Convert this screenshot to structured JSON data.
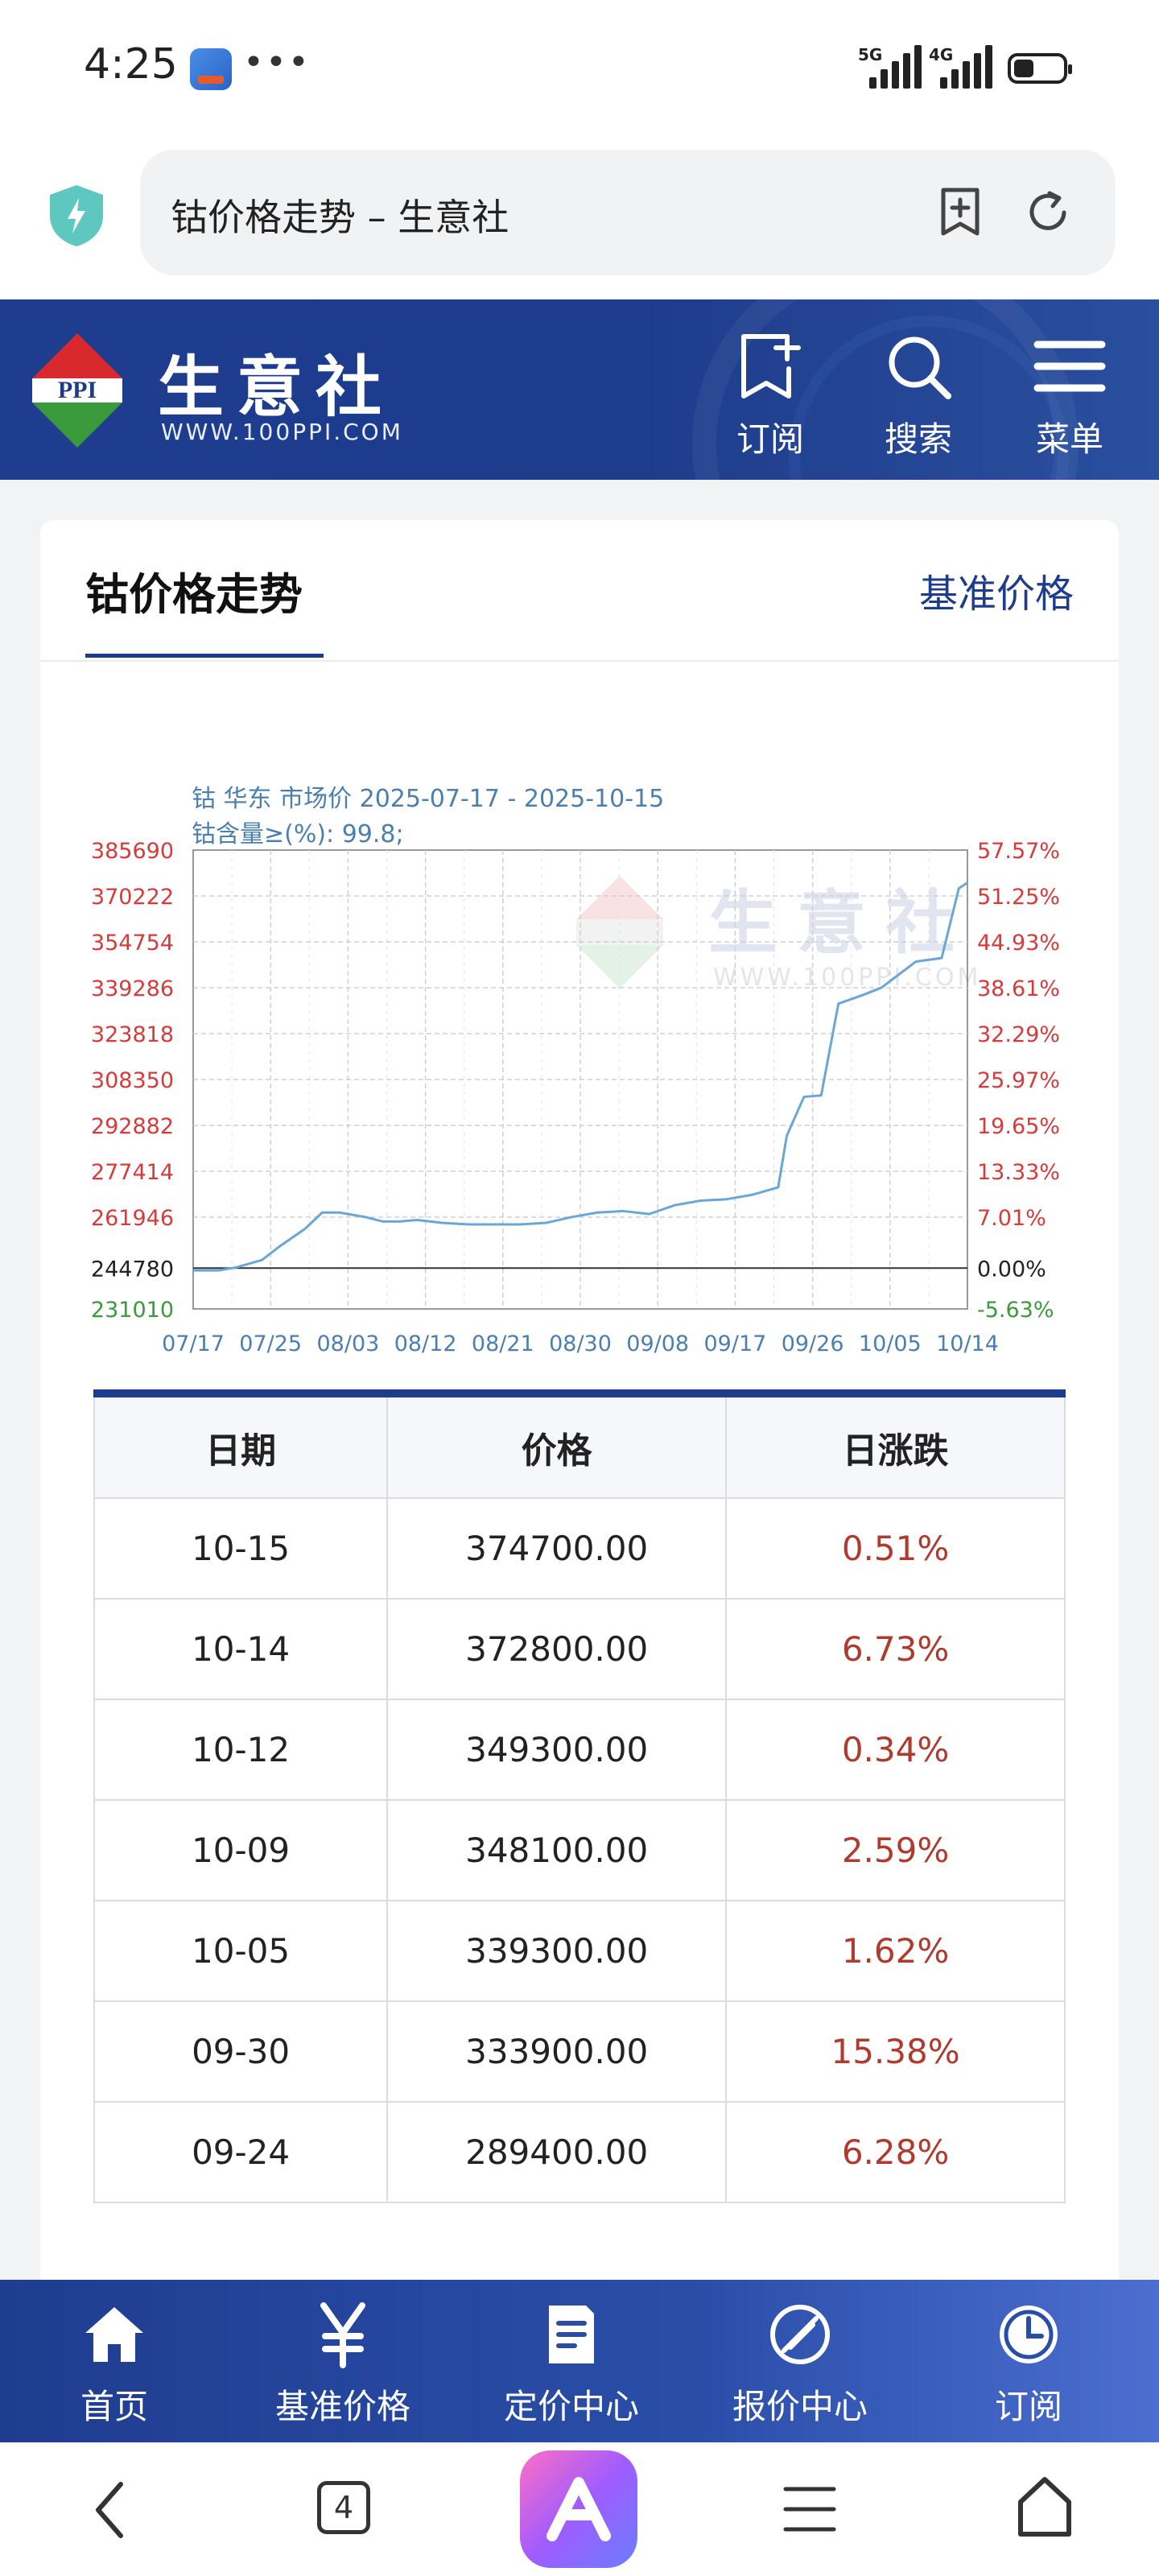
{
  "status": {
    "time": "4:25",
    "dots": "•••",
    "sig1": "5G",
    "sig2": "4G"
  },
  "urlbar": {
    "title": "钴价格走势 – 生意社"
  },
  "header": {
    "logo_text": "生意社",
    "logo_url": "WWW.100PPI.COM",
    "logo_badge": "PPI",
    "buttons": [
      "订阅",
      "搜索",
      "菜单"
    ]
  },
  "card": {
    "title": "钴价格走势",
    "link": "基准价格"
  },
  "chart_data": {
    "type": "line",
    "title": "钴 华东 市场价 2025-07-17 - 2025-10-15",
    "subtitle": "钴含量≥(%): 99.8;",
    "watermark": "生意社",
    "watermark_url": "WWW.100PPI.COM",
    "x_ticks": [
      "07/17",
      "07/25",
      "08/03",
      "08/12",
      "08/21",
      "08/30",
      "09/08",
      "09/17",
      "09/26",
      "10/05",
      "10/14"
    ],
    "y_ticks": [
      385690,
      370222,
      354754,
      339286,
      323818,
      308350,
      292882,
      277414,
      261946,
      244780,
      231010
    ],
    "y2_ticks": [
      "57.57%",
      "51.25%",
      "44.93%",
      "38.61%",
      "32.29%",
      "25.97%",
      "19.65%",
      "13.33%",
      "7.01%",
      "0.00%",
      "-5.63%"
    ],
    "ylim": [
      231010,
      385690
    ],
    "baseline": 244780,
    "grid": true,
    "x": [
      "2025-07-17",
      "2025-07-20",
      "2025-07-22",
      "2025-07-25",
      "2025-07-27",
      "2025-07-30",
      "2025-08-01",
      "2025-08-03",
      "2025-08-06",
      "2025-08-08",
      "2025-08-10",
      "2025-08-12",
      "2025-08-15",
      "2025-08-18",
      "2025-08-21",
      "2025-08-24",
      "2025-08-27",
      "2025-08-30",
      "2025-09-02",
      "2025-09-05",
      "2025-09-08",
      "2025-09-11",
      "2025-09-14",
      "2025-09-17",
      "2025-09-20",
      "2025-09-23",
      "2025-09-24",
      "2025-09-26",
      "2025-09-28",
      "2025-09-30",
      "2025-10-03",
      "2025-10-05",
      "2025-10-09",
      "2025-10-12",
      "2025-10-14",
      "2025-10-15"
    ],
    "values": [
      244000,
      244000,
      245000,
      247500,
      252000,
      258000,
      263500,
      263500,
      262000,
      260500,
      260500,
      261000,
      260000,
      259500,
      259500,
      259500,
      260000,
      262000,
      263500,
      264000,
      263000,
      266000,
      267500,
      268000,
      269500,
      272000,
      289400,
      302500,
      303000,
      333900,
      337000,
      339300,
      348100,
      349300,
      372800,
      374700
    ]
  },
  "table": {
    "headers": [
      "日期",
      "价格",
      "日涨跌"
    ],
    "rows": [
      [
        "10-15",
        "374700.00",
        "0.51%"
      ],
      [
        "10-14",
        "372800.00",
        "6.73%"
      ],
      [
        "10-12",
        "349300.00",
        "0.34%"
      ],
      [
        "10-09",
        "348100.00",
        "2.59%"
      ],
      [
        "10-05",
        "339300.00",
        "1.62%"
      ],
      [
        "09-30",
        "333900.00",
        "15.38%"
      ],
      [
        "09-24",
        "289400.00",
        "6.28%"
      ]
    ]
  },
  "tabbar": {
    "items": [
      "首页",
      "基准价格",
      "定价中心",
      "报价中心",
      "订阅"
    ]
  },
  "sysnav": {
    "tabs_count": "4"
  },
  "colors": {
    "brand": "#1e3c8c",
    "down": "#b03a2e",
    "line": "#6aa6d6"
  }
}
